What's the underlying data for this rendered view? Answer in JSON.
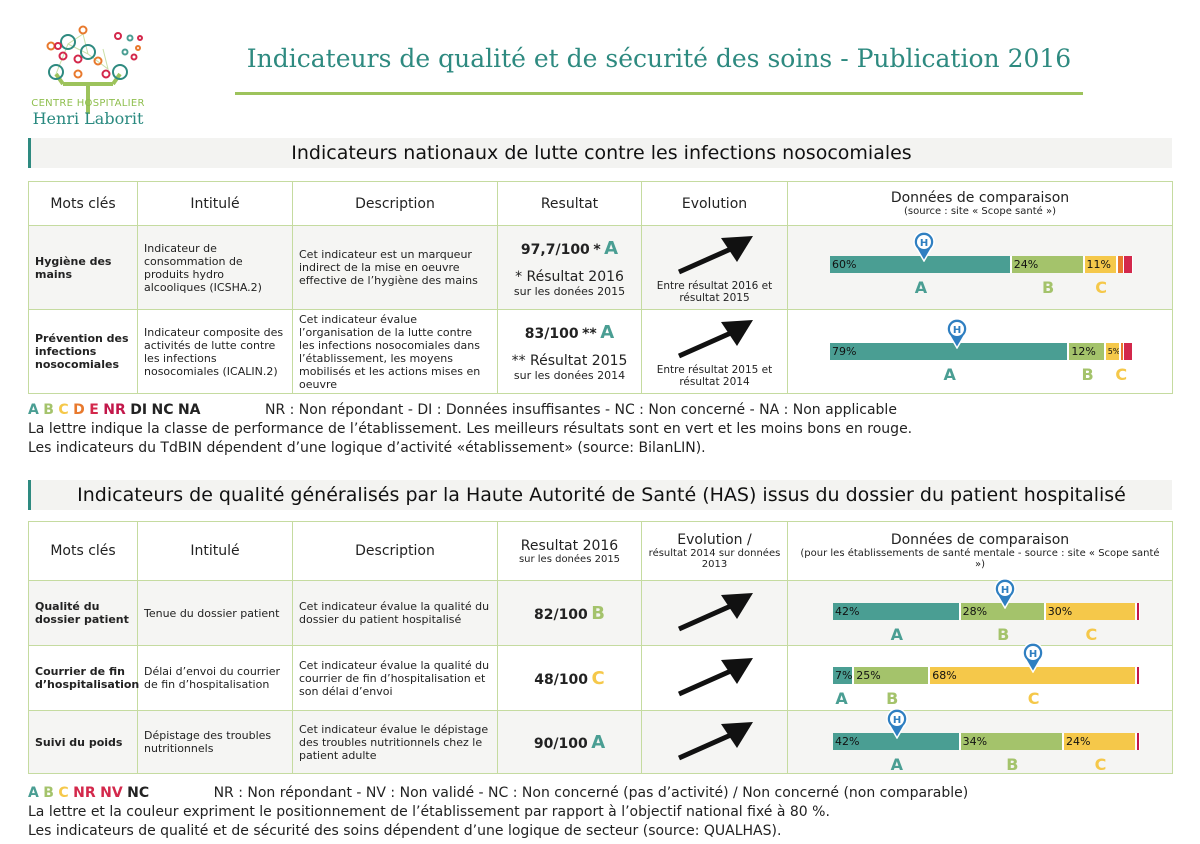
{
  "logo": {
    "line1": "CENTRE HOSPITALIER",
    "line2": "Henri Laborit"
  },
  "title": "Indicateurs de qualité et de sécurité des soins - Publication 2016",
  "colors": {
    "A": "#4a9e93",
    "B": "#a4c36b",
    "C": "#f5c84a",
    "D": "#e8792d",
    "E": "#d3284b",
    "NR": "#c2174a",
    "accent": "#2e8a80",
    "border": "#c5dba0",
    "marker": "#2f7fc1"
  },
  "section1": {
    "title": "Indicateurs nationaux de lutte contre les infections nosocomiales",
    "headers": {
      "keywords": "Mots clés",
      "name": "Intitulé",
      "description": "Description",
      "result": "Resultat",
      "evolution": "Evolution",
      "comparison": "Données de comparaison",
      "comparison_note": "(source : site « Scope santé »)"
    },
    "rows": [
      {
        "keywords": "Hygiène des mains",
        "name": "Indicateur de consommation de produits hydro alcooliques (ICSHA.2)",
        "description": "Cet indicateur est un marqueur indirect de la mise en oeuvre effective de l’hygiène des mains",
        "result": "97,7/100",
        "star": "*",
        "grade": "A",
        "note": "* Résultat 2016",
        "note_sub": "sur les donées 2015",
        "evolution_icon": "arrow-up-right-icon",
        "evolution": "Entre résultat 2016 et résultat 2015",
        "segments": [
          {
            "cls": "A",
            "pct": 60,
            "label": "60%"
          },
          {
            "cls": "B",
            "pct": 24,
            "label": "24%"
          },
          {
            "cls": "C",
            "pct": 11,
            "label": "11%"
          },
          {
            "cls": "D",
            "pct": 2,
            "label": ""
          },
          {
            "cls": "E",
            "pct": 3,
            "label": ""
          }
        ],
        "marker_pct": 31,
        "letters": [
          "A",
          "B",
          "C"
        ]
      },
      {
        "keywords": "Prévention des infections nosocomiales",
        "name": "Indicateur composite des activités de lutte contre les infections nosocomiales (ICALIN.2)",
        "description": "Cet indicateur évalue l’organisation de la lutte contre les infections nosocomiales dans l’établissement, les moyens mobilisés et les actions mises en oeuvre",
        "result": "83/100",
        "star": "**",
        "grade": "A",
        "note": "** Résultat 2015",
        "note_sub": "sur les donées 2014",
        "evolution_icon": "arrow-up-right-icon",
        "evolution": "Entre résultat 2015 et résultat 2014",
        "segments": [
          {
            "cls": "A",
            "pct": 79,
            "label": "79%"
          },
          {
            "cls": "B",
            "pct": 12,
            "label": "12%"
          },
          {
            "cls": "C",
            "pct": 5,
            "label": "5%"
          },
          {
            "cls": "D",
            "pct": 1,
            "label": ""
          },
          {
            "cls": "E",
            "pct": 3,
            "label": ""
          }
        ],
        "marker_pct": 42,
        "letters": [
          "A",
          "B",
          "C"
        ]
      }
    ],
    "legend": {
      "A": "A",
      "B": "B",
      "C": "C",
      "D": "D",
      "E": "E",
      "NR": "NR",
      "DI": "DI",
      "NC": "NC",
      "NA": "NA",
      "definitions": "NR : Non répondant - DI : Données insuffisantes - NC : Non concerné - NA : Non applicable",
      "line2": "La lettre indique la classe de performance de l’établissement. Les meilleurs résultats sont en vert et les moins bons en rouge.",
      "line3": "Les indicateurs du TdBIN dépendent d’une logique d’activité «établissement» (source: BilanLIN)."
    }
  },
  "section2": {
    "title": "Indicateurs de qualité généralisés par la Haute Autorité de Santé (HAS) issus du dossier du patient hospitalisé",
    "headers": {
      "keywords": "Mots clés",
      "name": "Intitulé",
      "description": "Description",
      "result": "Resultat 2016",
      "result_note": "sur les donées 2015",
      "evolution": "Evolution /",
      "evolution_note": "résultat 2014 sur données 2013",
      "comparison": "Données de comparaison",
      "comparison_note": "(pour les établissements de santé mentale - source : site « Scope santé »)"
    },
    "rows": [
      {
        "keywords": "Qualité du dossier patient",
        "name": "Tenue du dossier patient",
        "description": "Cet indicateur évalue la qualité du dossier du patient hospitalisé",
        "result": "82/100",
        "grade": "B",
        "evolution_icon": "arrow-up-right-icon",
        "segments": [
          {
            "cls": "A",
            "pct": 42,
            "label": "42%"
          },
          {
            "cls": "B",
            "pct": 28,
            "label": "28%"
          },
          {
            "cls": "C",
            "pct": 30,
            "label": "30%"
          },
          {
            "cls": "NR",
            "pct": 1,
            "label": ""
          }
        ],
        "marker_pct": 56,
        "letters": [
          "A",
          "B",
          "C"
        ]
      },
      {
        "keywords": "Courrier de fin d’hospitalisation",
        "name": "Délai d’envoi du courrier de fin d’hospitalisation",
        "description": "Cet indicateur évalue la qualité du courrier de fin d’hospitalisation et son délai d’envoi",
        "result": "48/100",
        "grade": "C",
        "evolution_icon": "arrow-up-right-icon",
        "segments": [
          {
            "cls": "A",
            "pct": 7,
            "label": "7%"
          },
          {
            "cls": "B",
            "pct": 25,
            "label": "25%"
          },
          {
            "cls": "C",
            "pct": 68,
            "label": "68%"
          },
          {
            "cls": "NR",
            "pct": 1,
            "label": ""
          }
        ],
        "marker_pct": 65,
        "letters": [
          "A",
          "B",
          "C"
        ]
      },
      {
        "keywords": "Suivi du poids",
        "name": "Dépistage des troubles nutritionnels",
        "description": "Cet indicateur évalue le dépistage des troubles nutritionnels chez le patient adulte",
        "result": "90/100",
        "grade": "A",
        "evolution_icon": "arrow-up-right-icon",
        "segments": [
          {
            "cls": "A",
            "pct": 42,
            "label": "42%"
          },
          {
            "cls": "B",
            "pct": 34,
            "label": "34%"
          },
          {
            "cls": "C",
            "pct": 24,
            "label": "24%"
          },
          {
            "cls": "NR",
            "pct": 1,
            "label": ""
          }
        ],
        "marker_pct": 21,
        "letters": [
          "A",
          "B",
          "C"
        ]
      }
    ],
    "legend": {
      "A": "A",
      "B": "B",
      "C": "C",
      "NR": "NR",
      "NV": "NV",
      "NC": "NC",
      "definitions": "NR : Non répondant - NV : Non validé - NC : Non concerné (pas d’activité) / Non concerné (non comparable)",
      "line2": "La lettre et la couleur expriment le positionnement de l’établissement par rapport à l’objectif national fixé à 80 %.",
      "line3": "Les indicateurs de qualité et de sécurité des soins dépendent d’une logique de secteur (source: QUALHAS)."
    }
  }
}
